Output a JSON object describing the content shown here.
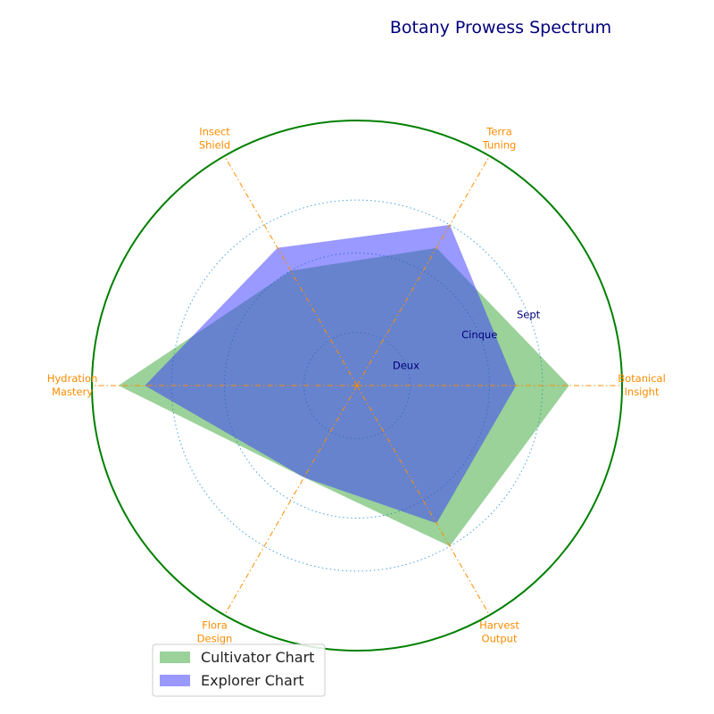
{
  "chart_data": {
    "type": "radar",
    "title": "Botany Prowess Spectrum",
    "categories": [
      [
        "Botanical",
        "Insight"
      ],
      [
        "Terra",
        "Tuning"
      ],
      [
        "Insect",
        "Shield"
      ],
      [
        "Hydration",
        "Mastery"
      ],
      [
        "Flora",
        "Design"
      ],
      [
        "Harvest",
        "Output"
      ]
    ],
    "rmax": 10,
    "rings": [
      {
        "value": 2,
        "label": "Deux"
      },
      {
        "value": 5,
        "label": "Cinque"
      },
      {
        "value": 7,
        "label": "Sept"
      }
    ],
    "series": [
      {
        "name": "Cultivator Chart",
        "values": [
          8,
          6,
          5,
          9,
          4,
          7
        ],
        "color": "#2ca02c",
        "opacity": 0.48
      },
      {
        "name": "Explorer Chart",
        "values": [
          6,
          7,
          6,
          8,
          4,
          6
        ],
        "color": "#3333ff",
        "opacity": 0.5
      }
    ],
    "legend_position": "lower-left"
  },
  "colors": {
    "title": "#00007a",
    "axis_labels": "#ff8c00",
    "spokes": "#ff8c00",
    "outer_circle": "#008000",
    "grid_rings": "#4aa3df",
    "ring_labels": "#00007a"
  }
}
